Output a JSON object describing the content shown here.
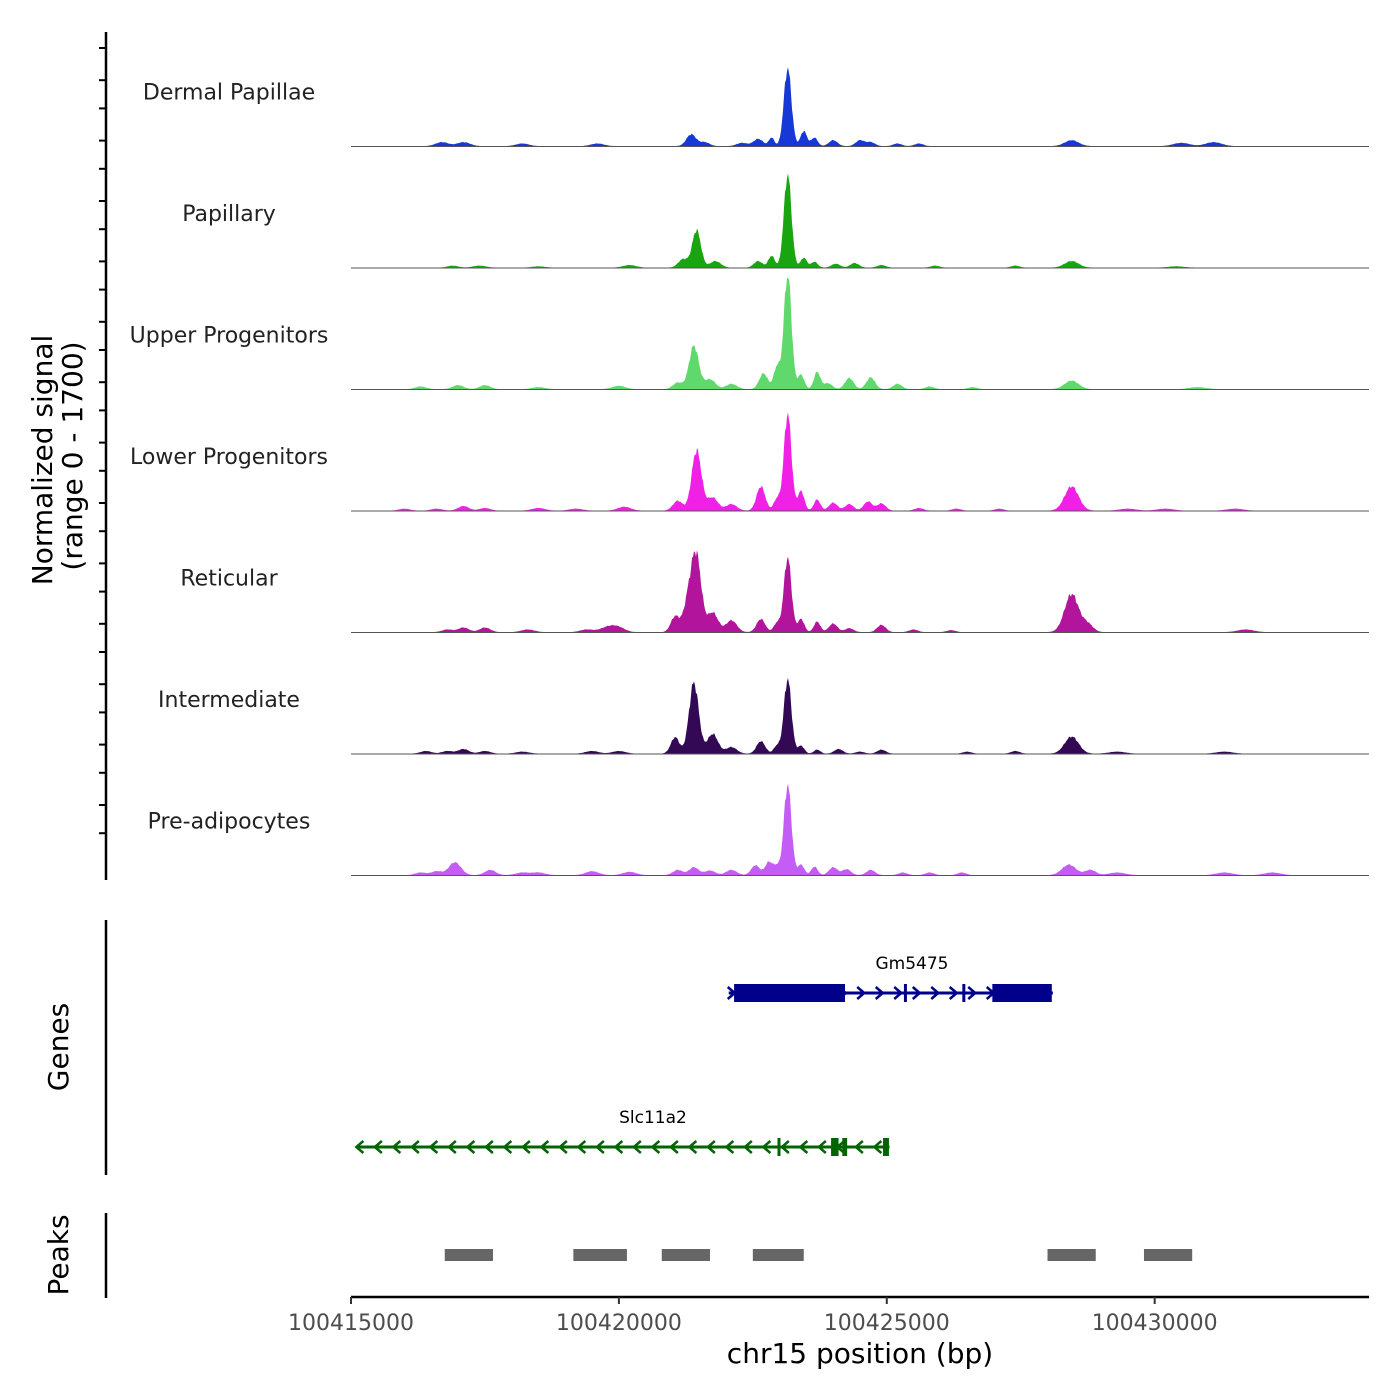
{
  "chart_data": {
    "type": "area",
    "title": "",
    "y_axis_title_line1": "Normalized signal",
    "y_axis_title_line2": "(range 0 - 1700)",
    "ylim": [
      0,
      1700
    ],
    "xlabel": "chr15 position (bp)",
    "xlim": [
      100415000,
      100434000
    ],
    "x_ticks": [
      {
        "value": 100415000,
        "label": "100415000"
      },
      {
        "value": 100420000,
        "label": "100420000"
      },
      {
        "value": 100425000,
        "label": "100425000"
      },
      {
        "value": 100430000,
        "label": "100430000"
      }
    ],
    "tracks": [
      {
        "name": "Dermal Papillae",
        "color": "#1538d6",
        "peaks": [
          [
            100416700,
            60,
            120
          ],
          [
            100417100,
            60,
            120
          ],
          [
            100418200,
            40,
            120
          ],
          [
            100419600,
            40,
            120
          ],
          [
            100421350,
            180,
            90
          ],
          [
            100421600,
            60,
            90
          ],
          [
            100422300,
            50,
            100
          ],
          [
            100422600,
            110,
            90
          ],
          [
            100422850,
            130,
            50
          ],
          [
            100423150,
            1190,
            70
          ],
          [
            100423450,
            230,
            60
          ],
          [
            100423650,
            130,
            60
          ],
          [
            100424000,
            90,
            80
          ],
          [
            100424500,
            90,
            80
          ],
          [
            100424700,
            60,
            80
          ],
          [
            100425200,
            40,
            80
          ],
          [
            100425600,
            40,
            80
          ],
          [
            100428450,
            90,
            130
          ],
          [
            100430500,
            50,
            150
          ],
          [
            100431100,
            60,
            150
          ]
        ]
      },
      {
        "name": "Papillary",
        "color": "#19a510",
        "peaks": [
          [
            100416900,
            30,
            100
          ],
          [
            100417400,
            30,
            120
          ],
          [
            100418500,
            20,
            120
          ],
          [
            100420200,
            40,
            120
          ],
          [
            100421200,
            130,
            90
          ],
          [
            100421450,
            570,
            80
          ],
          [
            100421800,
            100,
            100
          ],
          [
            100422600,
            100,
            80
          ],
          [
            100422850,
            180,
            60
          ],
          [
            100423150,
            1420,
            70
          ],
          [
            100423450,
            150,
            60
          ],
          [
            100423650,
            90,
            60
          ],
          [
            100424050,
            60,
            80
          ],
          [
            100424400,
            70,
            80
          ],
          [
            100424900,
            40,
            80
          ],
          [
            100425900,
            30,
            80
          ],
          [
            100427400,
            30,
            80
          ],
          [
            100428450,
            100,
            130
          ],
          [
            100430400,
            20,
            150
          ]
        ]
      },
      {
        "name": "Upper Progenitors",
        "color": "#5fd96c",
        "peaks": [
          [
            100416300,
            40,
            100
          ],
          [
            100417000,
            60,
            100
          ],
          [
            100417500,
            60,
            100
          ],
          [
            100418500,
            30,
            120
          ],
          [
            100420000,
            50,
            120
          ],
          [
            100421100,
            100,
            90
          ],
          [
            100421400,
            660,
            90
          ],
          [
            100421700,
            150,
            100
          ],
          [
            100422100,
            80,
            100
          ],
          [
            100422700,
            240,
            80
          ],
          [
            100422950,
            340,
            60
          ],
          [
            100423150,
            1780,
            70
          ],
          [
            100423400,
            220,
            60
          ],
          [
            100423700,
            260,
            60
          ],
          [
            100423900,
            90,
            80
          ],
          [
            100424300,
            170,
            80
          ],
          [
            100424700,
            180,
            80
          ],
          [
            100425200,
            80,
            80
          ],
          [
            100425800,
            40,
            80
          ],
          [
            100426600,
            30,
            80
          ],
          [
            100428450,
            130,
            130
          ],
          [
            100430800,
            30,
            150
          ]
        ]
      },
      {
        "name": "Lower Progenitors",
        "color": "#f020e6",
        "peaks": [
          [
            100416000,
            30,
            100
          ],
          [
            100416600,
            30,
            100
          ],
          [
            100417100,
            70,
            100
          ],
          [
            100417500,
            40,
            100
          ],
          [
            100418500,
            40,
            120
          ],
          [
            100419200,
            30,
            120
          ],
          [
            100420100,
            60,
            120
          ],
          [
            100421100,
            150,
            90
          ],
          [
            100421450,
            920,
            90
          ],
          [
            100421750,
            200,
            100
          ],
          [
            100422100,
            100,
            100
          ],
          [
            100422650,
            370,
            80
          ],
          [
            100422950,
            180,
            60
          ],
          [
            100423150,
            1480,
            70
          ],
          [
            100423400,
            300,
            60
          ],
          [
            100423700,
            170,
            60
          ],
          [
            100424000,
            120,
            80
          ],
          [
            100424300,
            100,
            80
          ],
          [
            100424650,
            140,
            80
          ],
          [
            100424900,
            110,
            80
          ],
          [
            100425600,
            40,
            80
          ],
          [
            100426300,
            30,
            80
          ],
          [
            100427100,
            30,
            80
          ],
          [
            100428450,
            370,
            130
          ],
          [
            100429500,
            30,
            150
          ],
          [
            100430200,
            30,
            150
          ],
          [
            100431500,
            30,
            150
          ]
        ]
      },
      {
        "name": "Reticular",
        "color": "#b3149c",
        "peaks": [
          [
            100416800,
            40,
            100
          ],
          [
            100417100,
            70,
            100
          ],
          [
            100417500,
            70,
            100
          ],
          [
            100418300,
            40,
            120
          ],
          [
            100419400,
            40,
            120
          ],
          [
            100419800,
            80,
            140
          ],
          [
            100420000,
            60,
            120
          ],
          [
            100421050,
            240,
            80
          ],
          [
            100421300,
            480,
            90
          ],
          [
            100421450,
            1100,
            90
          ],
          [
            100421750,
            300,
            100
          ],
          [
            100422100,
            180,
            100
          ],
          [
            100422650,
            200,
            80
          ],
          [
            100422950,
            140,
            60
          ],
          [
            100423150,
            1140,
            70
          ],
          [
            100423400,
            200,
            60
          ],
          [
            100423700,
            160,
            60
          ],
          [
            100424000,
            130,
            80
          ],
          [
            100424300,
            60,
            80
          ],
          [
            100424900,
            110,
            80
          ],
          [
            100425500,
            40,
            80
          ],
          [
            100426200,
            30,
            80
          ],
          [
            100428450,
            580,
            130
          ],
          [
            100428750,
            120,
            100
          ],
          [
            100431700,
            40,
            150
          ]
        ]
      },
      {
        "name": "Intermediate",
        "color": "#330956",
        "peaks": [
          [
            100416400,
            40,
            100
          ],
          [
            100416800,
            40,
            100
          ],
          [
            100417100,
            70,
            100
          ],
          [
            100417500,
            40,
            100
          ],
          [
            100418200,
            30,
            120
          ],
          [
            100419500,
            40,
            120
          ],
          [
            100420000,
            40,
            120
          ],
          [
            100421050,
            250,
            80
          ],
          [
            100421400,
            1080,
            90
          ],
          [
            100421750,
            300,
            100
          ],
          [
            100422100,
            100,
            100
          ],
          [
            100422650,
            190,
            80
          ],
          [
            100422950,
            120,
            60
          ],
          [
            100423150,
            1140,
            70
          ],
          [
            100423400,
            120,
            60
          ],
          [
            100423700,
            60,
            60
          ],
          [
            100424100,
            70,
            80
          ],
          [
            100424500,
            30,
            80
          ],
          [
            100424900,
            60,
            80
          ],
          [
            100426500,
            30,
            80
          ],
          [
            100427400,
            40,
            80
          ],
          [
            100428450,
            260,
            130
          ],
          [
            100429300,
            30,
            150
          ],
          [
            100431300,
            30,
            150
          ]
        ]
      },
      {
        "name": "Pre-adipocytes",
        "color": "#c35df5",
        "peaks": [
          [
            100416300,
            40,
            100
          ],
          [
            100416600,
            60,
            100
          ],
          [
            100416900,
            130,
            100
          ],
          [
            100417000,
            90,
            100
          ],
          [
            100417600,
            80,
            100
          ],
          [
            100418200,
            40,
            120
          ],
          [
            100418500,
            40,
            120
          ],
          [
            100419500,
            60,
            120
          ],
          [
            100420200,
            50,
            120
          ],
          [
            100421100,
            80,
            90
          ],
          [
            100421400,
            120,
            90
          ],
          [
            100421700,
            70,
            100
          ],
          [
            100422100,
            80,
            100
          ],
          [
            100422550,
            150,
            80
          ],
          [
            100422800,
            200,
            70
          ],
          [
            100422950,
            130,
            60
          ],
          [
            100423150,
            1380,
            70
          ],
          [
            100423400,
            160,
            60
          ],
          [
            100423650,
            130,
            60
          ],
          [
            100424000,
            120,
            80
          ],
          [
            100424250,
            90,
            80
          ],
          [
            100424700,
            80,
            80
          ],
          [
            100425300,
            40,
            80
          ],
          [
            100425800,
            40,
            80
          ],
          [
            100426400,
            40,
            80
          ],
          [
            100428400,
            160,
            130
          ],
          [
            100428800,
            80,
            100
          ],
          [
            100429300,
            40,
            150
          ],
          [
            100431300,
            40,
            150
          ],
          [
            100432200,
            40,
            150
          ]
        ]
      }
    ],
    "genes_label": "Genes",
    "genes": [
      {
        "name": "Gm5475",
        "strand": "+",
        "color": "#00008b",
        "start": 100422050,
        "end": 100428100,
        "exons": [
          [
            100422150,
            100424220
          ],
          [
            100425320,
            100425340
          ],
          [
            100426410,
            100426440
          ],
          [
            100426970,
            100428080
          ]
        ]
      },
      {
        "name": "Slc11a2",
        "strand": "-",
        "color": "#006400",
        "start": 100415100,
        "end": 100425050,
        "exons": [
          [
            100422960,
            100423010
          ],
          [
            100423960,
            100424100
          ],
          [
            100424170,
            100424260
          ],
          [
            100424930,
            100425040
          ]
        ]
      }
    ],
    "peaks_label": "Peaks",
    "peak_regions": [
      [
        100416750,
        100417650
      ],
      [
        100419150,
        100420150
      ],
      [
        100420800,
        100421700
      ],
      [
        100422500,
        100423450
      ],
      [
        100428000,
        100428900
      ],
      [
        100429800,
        100430700
      ]
    ]
  }
}
